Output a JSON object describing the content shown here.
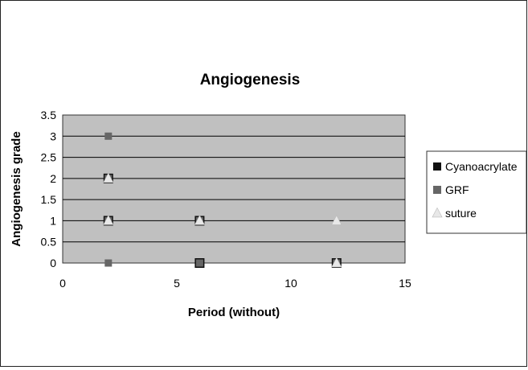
{
  "chart_data": {
    "type": "scatter",
    "title": "Angiogenesis",
    "xlabel": "Period (without)",
    "ylabel": "Angiogenesis grade",
    "xlim": [
      0,
      15
    ],
    "ylim": [
      0,
      3.5
    ],
    "xticks": [
      0,
      5,
      10,
      15
    ],
    "yticks": [
      0,
      0.5,
      1,
      1.5,
      2,
      2.5,
      3,
      3.5
    ],
    "grid": "horizontal",
    "plot_background": "#c0c0c0",
    "legend_position": "right",
    "series": [
      {
        "name": "Cyanoacrylate",
        "marker": "square",
        "color": "#111111",
        "points": [
          [
            2,
            2
          ],
          [
            2,
            1
          ],
          [
            6,
            1
          ],
          [
            6,
            0
          ],
          [
            12,
            0
          ]
        ]
      },
      {
        "name": "GRF",
        "marker": "square",
        "color": "#666666",
        "points": [
          [
            2,
            3
          ],
          [
            2,
            2
          ],
          [
            2,
            1
          ],
          [
            2,
            0
          ],
          [
            6,
            1
          ],
          [
            6,
            0
          ],
          [
            12,
            0
          ]
        ]
      },
      {
        "name": "suture",
        "marker": "triangle",
        "color": "#e8e8e8",
        "points": [
          [
            2,
            2
          ],
          [
            2,
            1
          ],
          [
            6,
            1
          ],
          [
            12,
            1
          ],
          [
            12,
            0
          ]
        ]
      }
    ]
  }
}
